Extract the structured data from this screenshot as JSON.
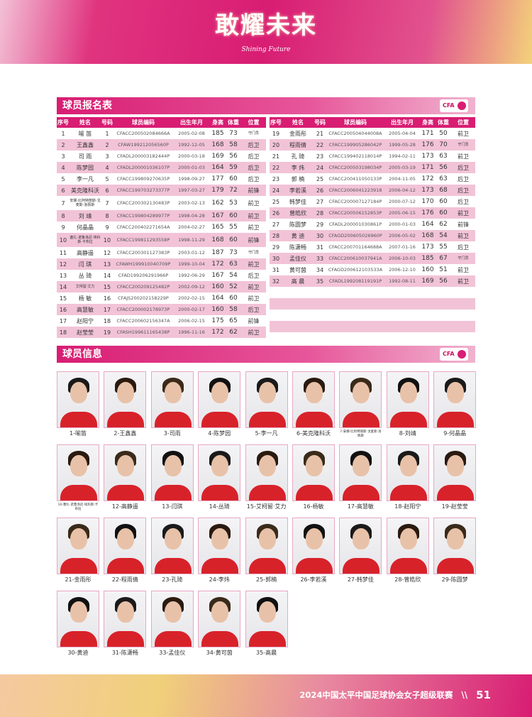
{
  "banner": {
    "title": "敢耀未来",
    "subtitle": "Shining Future"
  },
  "sections": {
    "roster_title": "球员报名表",
    "info_title": "球员信息",
    "logo": "CFA"
  },
  "colors": {
    "accent": "#d81d73",
    "row_alt": "#f2c3d6"
  },
  "table": {
    "headers": [
      "序号",
      "姓名",
      "号码",
      "球员编码",
      "出生年月",
      "身高",
      "体重",
      "位置"
    ],
    "left": [
      [
        "1",
        "喻 笛",
        "1",
        "CFACC200502084666A",
        "2005-02-08",
        "185",
        "73",
        "守门员"
      ],
      [
        "2",
        "王鑫鑫",
        "2",
        "CFAW199212056560P",
        "1992-12-05",
        "168",
        "58",
        "后卫"
      ],
      [
        "3",
        "司 雨",
        "3",
        "CFADL200003182444P",
        "2000-03-18",
        "169",
        "56",
        "后卫"
      ],
      [
        "4",
        "陈梦园",
        "4",
        "CFADL200001036107P",
        "2000-01-03",
        "164",
        "59",
        "后卫"
      ],
      [
        "5",
        "李一凡",
        "5",
        "CFACC199809270635P",
        "1998-09-27",
        "177",
        "60",
        "后卫"
      ],
      [
        "6",
        "美克隆科沃",
        "6",
        "CFACC199703273377P",
        "1997-03-27",
        "179",
        "72",
        "前锋"
      ],
      [
        "7",
        "安娜·比阿特丽斯·戈麦斯·洛佩斯",
        "7",
        "CFACC200302130483P",
        "2003-02-13",
        "162",
        "53",
        "前卫"
      ],
      [
        "8",
        "刘 靖",
        "8",
        "CFACC199804289977P",
        "1998-04-28",
        "167",
        "60",
        "前卫"
      ],
      [
        "9",
        "何晶晶",
        "9",
        "CFACC200402271654A",
        "2004-02-27",
        "165",
        "55",
        "前卫"
      ],
      [
        "10",
        "塞扎·诺鲁洛尼·埃科斯·卡布拉",
        "10",
        "CFACC199811293558P",
        "1998-11-29",
        "168",
        "60",
        "前锋"
      ],
      [
        "11",
        "高静遥",
        "12",
        "CFACC200301127383P",
        "2003-01-12",
        "187",
        "73",
        "守门员"
      ],
      [
        "12",
        "闫 琪",
        "13",
        "CFAWH199910040709P",
        "1999-10-04",
        "172",
        "63",
        "前卫"
      ],
      [
        "13",
        "丛 琦",
        "14",
        "CFAD199206291966P",
        "1992-06-29",
        "167",
        "54",
        "后卫"
      ],
      [
        "14",
        "艾柯留·艾力",
        "15",
        "CFACC200209125482P",
        "2002-09-12",
        "160",
        "52",
        "前卫"
      ],
      [
        "15",
        "杨 敏",
        "16",
        "CFAJS200202158229P",
        "2002-02-15",
        "164",
        "60",
        "前卫"
      ],
      [
        "16",
        "高慧敏",
        "17",
        "CFACC200002178973P",
        "2000-02-17",
        "160",
        "58",
        "后卫"
      ],
      [
        "17",
        "赵阳宁",
        "18",
        "CFACC200602156347A",
        "2006-02-15",
        "175",
        "65",
        "前锋"
      ],
      [
        "18",
        "赵莹莹",
        "19",
        "CFASH199611165438P",
        "1996-11-16",
        "172",
        "62",
        "前卫"
      ]
    ],
    "right": [
      [
        "19",
        "金雨彤",
        "21",
        "CFACC200504044008A",
        "2005-04-04",
        "171",
        "50",
        "前卫"
      ],
      [
        "20",
        "程雨倩",
        "22",
        "CFACC199905286042P",
        "1999-05-28",
        "176",
        "70",
        "守门员"
      ],
      [
        "21",
        "孔 琦",
        "23",
        "CFACC199402118014P",
        "1994-02-11",
        "173",
        "63",
        "前卫"
      ],
      [
        "22",
        "李 炜",
        "24",
        "CFACC200503198034P",
        "2005-03-19",
        "171",
        "56",
        "后卫"
      ],
      [
        "23",
        "郭 楠",
        "25",
        "CFACC200411050133P",
        "2004-11-05",
        "172",
        "63",
        "后卫"
      ],
      [
        "24",
        "李若溪",
        "26",
        "CFACC2006041223918",
        "2006-04-12",
        "173",
        "68",
        "后卫"
      ],
      [
        "25",
        "韩梦佳",
        "27",
        "CFACC200007127184P",
        "2000-07-12",
        "170",
        "60",
        "后卫"
      ],
      [
        "26",
        "曾皓欣",
        "28",
        "CFACC200506152853P",
        "2005-06-15",
        "176",
        "60",
        "前卫"
      ],
      [
        "27",
        "陈圆梦",
        "29",
        "CFADL200001030861P",
        "2000-01-03",
        "164",
        "62",
        "前锋"
      ],
      [
        "28",
        "黄 迪",
        "30",
        "CFAGD200605026960P",
        "2006-05-02",
        "168",
        "54",
        "前卫"
      ],
      [
        "29",
        "陈潇畅",
        "31",
        "CFACC200701164688A",
        "2007-01-16",
        "173",
        "55",
        "后卫"
      ],
      [
        "30",
        "孟佳仪",
        "33",
        "CFACC200610037941A",
        "2006-10-03",
        "185",
        "67",
        "守门员"
      ],
      [
        "31",
        "黄可茵",
        "34",
        "CFAGD200612103533A",
        "2006-12-10",
        "160",
        "51",
        "前卫"
      ],
      [
        "32",
        "高 晨",
        "35",
        "CFADL199208119191P",
        "1992-08-11",
        "169",
        "56",
        "前卫"
      ]
    ]
  },
  "players": [
    "1-喻笛",
    "2-王鑫鑫",
    "3-司雨",
    "4-陈梦园",
    "5-李一凡",
    "6-美克隆科沃",
    "7-安娜·比阿特丽斯·戈麦斯·洛佩斯",
    "8-刘靖",
    "9-何晶晶",
    "10-塞扎·诺鲁洛尼·埃科斯·卡布拉",
    "12-高静遥",
    "13-闫琪",
    "14-丛琦",
    "15-艾柯留·艾力",
    "16-杨敏",
    "17-高慧敏",
    "18-赵阳宁",
    "19-赵莹莹",
    "21-金雨彤",
    "22-程雨倩",
    "23-孔琦",
    "24-李炜",
    "25-郭楠",
    "26-李若溪",
    "27-韩梦佳",
    "28-曾皓欣",
    "29-陈圆梦",
    "30-黄迪",
    "31-陈潇畅",
    "33-孟佳仪",
    "34-黄可茵",
    "35-高晨"
  ],
  "footer": {
    "text": "2024中国太平中国足球协会女子超级联赛",
    "separator": "\\\\",
    "page": "51"
  }
}
